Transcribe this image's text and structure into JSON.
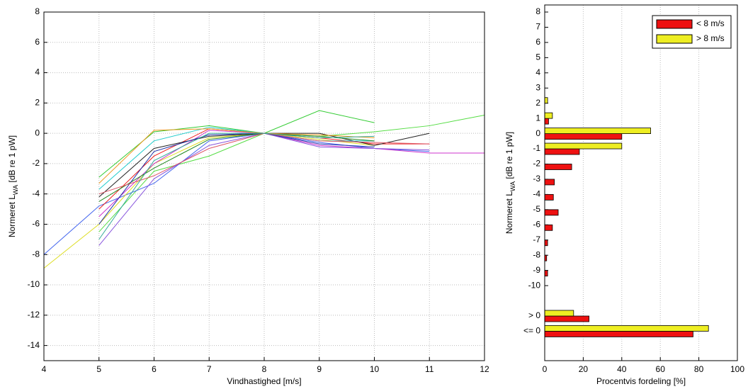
{
  "chart_data": [
    {
      "type": "line",
      "xlabel": "Vindhastighed [m/s]",
      "ylabel": [
        "Normeret L",
        "WA",
        " [dB re 1 pW]"
      ],
      "x": [
        4,
        5,
        6,
        7,
        8,
        9,
        10,
        11,
        12
      ],
      "xlim": [
        4,
        12
      ],
      "xticks": [
        4,
        5,
        6,
        7,
        8,
        9,
        10,
        11,
        12
      ],
      "ylim": [
        -15,
        8
      ],
      "yticks": [
        8,
        6,
        4,
        2,
        0,
        -2,
        -4,
        -6,
        -8,
        -10,
        -12,
        -14
      ],
      "grid": true,
      "series": [
        {
          "color": "#33cc33",
          "values": [
            null,
            -2.9,
            0.1,
            0.5,
            0,
            1.5,
            0.7,
            null,
            null
          ]
        },
        {
          "color": "#55dd44",
          "values": [
            null,
            -6.5,
            -2.5,
            -1.5,
            0,
            -0.2,
            0.1,
            0.5,
            1.2
          ]
        },
        {
          "color": "#4466ee",
          "values": [
            -8,
            -4.8,
            -3.3,
            -0.5,
            0,
            -0.6,
            -1,
            -1.2,
            null
          ]
        },
        {
          "color": "#dddd22",
          "values": [
            -8.9,
            -6,
            -2,
            -0.3,
            0,
            -0.4,
            -0.8,
            null,
            null
          ]
        },
        {
          "color": "#ee2222",
          "values": [
            null,
            -5,
            -1.5,
            0.3,
            0,
            -0.3,
            -0.7,
            -0.7,
            null
          ]
        },
        {
          "color": "#cc33cc",
          "values": [
            null,
            -5.5,
            -2,
            0.2,
            0,
            -0.8,
            -1,
            -1.3,
            -1.3
          ]
        },
        {
          "color": "#222222",
          "values": [
            null,
            -4.2,
            -1,
            -0.2,
            0,
            0,
            -0.8,
            0,
            null
          ]
        },
        {
          "color": "#22cccc",
          "values": [
            null,
            -3.7,
            -0.5,
            0.4,
            0,
            -0.5,
            -0.5,
            null,
            null
          ]
        },
        {
          "color": "#8855dd",
          "values": [
            null,
            -7.4,
            -3,
            -0.8,
            0,
            -0.9,
            -1,
            -1.1,
            null
          ]
        },
        {
          "color": "#228822",
          "values": [
            null,
            -4.5,
            -2.3,
            -0.4,
            0,
            -0.2,
            -0.5,
            null,
            null
          ]
        },
        {
          "color": "#ee9922",
          "values": [
            null,
            -3.3,
            0.2,
            0.3,
            0,
            -0.1,
            -0.3,
            null,
            null
          ]
        },
        {
          "color": "#2233aa",
          "values": [
            null,
            -6,
            -1.2,
            -0.1,
            0,
            -0.7,
            -0.9,
            null,
            null
          ]
        },
        {
          "color": "#dd5566",
          "values": [
            null,
            -4,
            -2.8,
            -1,
            0,
            -0.5,
            -0.6,
            -0.7,
            null
          ]
        },
        {
          "color": "#33aa99",
          "values": [
            null,
            -7,
            -1.8,
            0,
            0,
            -0.3,
            -0.2,
            null,
            null
          ]
        }
      ]
    },
    {
      "type": "barh",
      "xlabel": "Procentvis fordeling [%]",
      "ylabel": [
        "Normeret L",
        "WA",
        " [dB re 1 pW]"
      ],
      "categories": [
        "8",
        "7",
        "6",
        "5",
        "4",
        "3",
        "2",
        "1",
        "0",
        "-1",
        "-2",
        "-3",
        "-4",
        "-5",
        "-6",
        "-7",
        "-8",
        "-9",
        "-10",
        null,
        "> 0",
        "<= 0"
      ],
      "xlim": [
        0,
        100
      ],
      "xticks": [
        0,
        20,
        40,
        60,
        80,
        100
      ],
      "grid": true,
      "legend": "upper-right",
      "series": [
        {
          "name": "< 8 m/s",
          "color": "#ee1111",
          "values": [
            0,
            0,
            0,
            0,
            0,
            0,
            0,
            2,
            40,
            18,
            14,
            5,
            4.5,
            7,
            4,
            1.5,
            1,
            1.5,
            0,
            null,
            23,
            77
          ]
        },
        {
          "name": "> 8 m/s",
          "color": "#eeee22",
          "values": [
            0,
            0,
            0,
            0,
            0,
            0,
            1.5,
            4,
            55,
            40,
            0,
            0,
            0,
            0,
            0,
            0,
            0,
            0,
            0,
            null,
            15,
            85
          ]
        }
      ]
    }
  ]
}
